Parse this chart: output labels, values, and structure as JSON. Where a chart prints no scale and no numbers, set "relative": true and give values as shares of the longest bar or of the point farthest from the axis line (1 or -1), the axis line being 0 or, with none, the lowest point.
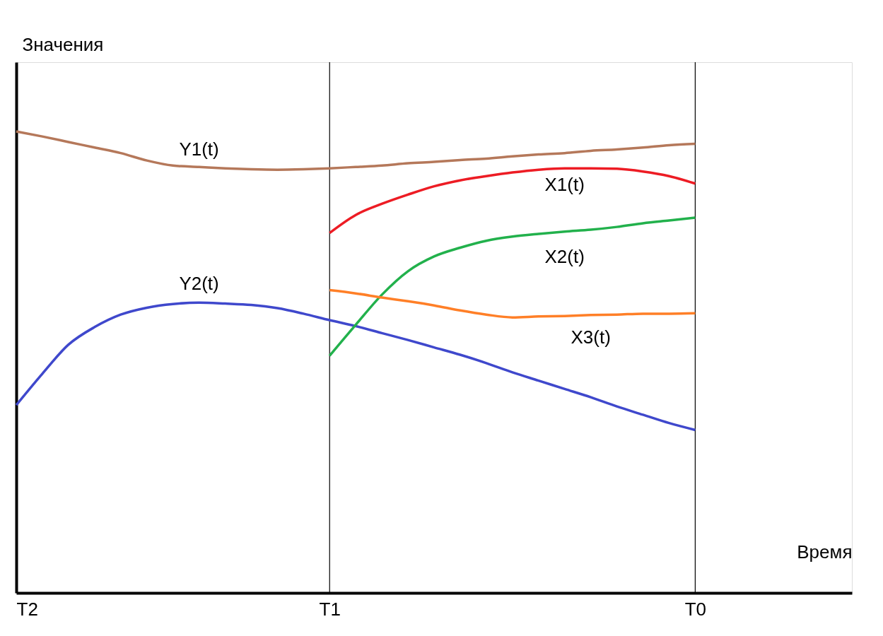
{
  "chart_data": {
    "type": "line",
    "relative": true,
    "xlabel": "Время",
    "ylabel": "Значения",
    "tick_labels": "x",
    "line_style": "solid",
    "categories": [
      "T2",
      null,
      null,
      null,
      null,
      null,
      null,
      null,
      null,
      null,
      null,
      null,
      "T1",
      null,
      null,
      null,
      null,
      null,
      null,
      null,
      null,
      null,
      null,
      null,
      null,
      null,
      "T0",
      null,
      null,
      null,
      null,
      null,
      null
    ],
    "ref_lines": [
      {
        "axis": "x",
        "value": "T1",
        "color": "#000000"
      },
      {
        "axis": "x",
        "value": "T0",
        "color": "#000000"
      }
    ],
    "series": [
      {
        "name": "Y1(t)",
        "color": "#b5785a",
        "values": [
          1.0,
          0.989,
          0.977,
          0.965,
          0.953,
          0.937,
          0.926,
          0.923,
          0.92,
          0.918,
          0.917,
          0.918,
          0.92,
          0.923,
          0.926,
          0.931,
          0.934,
          0.938,
          0.941,
          0.946,
          0.95,
          0.953,
          0.958,
          0.961,
          0.965,
          0.97,
          0.973,
          null,
          null,
          null,
          null,
          null,
          null
        ]
      },
      {
        "name": "Y2(t)",
        "color": "#3f48cc",
        "values": [
          0.407,
          0.475,
          0.538,
          0.576,
          0.603,
          0.618,
          0.626,
          0.629,
          0.627,
          0.624,
          0.617,
          0.605,
          0.591,
          0.578,
          0.563,
          0.548,
          0.532,
          0.516,
          0.498,
          0.478,
          0.46,
          0.442,
          0.424,
          0.404,
          0.386,
          0.368,
          0.353,
          null,
          null,
          null,
          null,
          null,
          null
        ]
      },
      {
        "name": "X1(t)",
        "color": "#ed1c24",
        "values": [
          null,
          null,
          null,
          null,
          null,
          null,
          null,
          null,
          null,
          null,
          null,
          null,
          0.78,
          0.819,
          0.843,
          0.863,
          0.881,
          0.894,
          0.903,
          0.911,
          0.917,
          0.92,
          0.92,
          0.919,
          0.913,
          0.903,
          0.887,
          null,
          null,
          null,
          null,
          null,
          null
        ]
      },
      {
        "name": "X2(t)",
        "color": "#22b14c",
        "values": [
          null,
          null,
          null,
          null,
          null,
          null,
          null,
          null,
          null,
          null,
          null,
          null,
          0.514,
          0.581,
          0.646,
          0.697,
          0.729,
          0.748,
          0.763,
          0.772,
          0.778,
          0.783,
          0.787,
          0.793,
          0.801,
          0.807,
          0.813,
          null,
          null,
          null,
          null,
          null,
          null
        ]
      },
      {
        "name": "X3(t)",
        "color": "#ff7f27",
        "values": [
          null,
          null,
          null,
          null,
          null,
          null,
          null,
          null,
          null,
          null,
          null,
          null,
          0.656,
          0.649,
          0.64,
          0.632,
          0.623,
          0.612,
          0.603,
          0.597,
          0.599,
          0.6,
          0.602,
          0.603,
          0.605,
          0.605,
          0.606,
          null,
          null,
          null,
          null,
          null,
          null
        ]
      }
    ]
  }
}
